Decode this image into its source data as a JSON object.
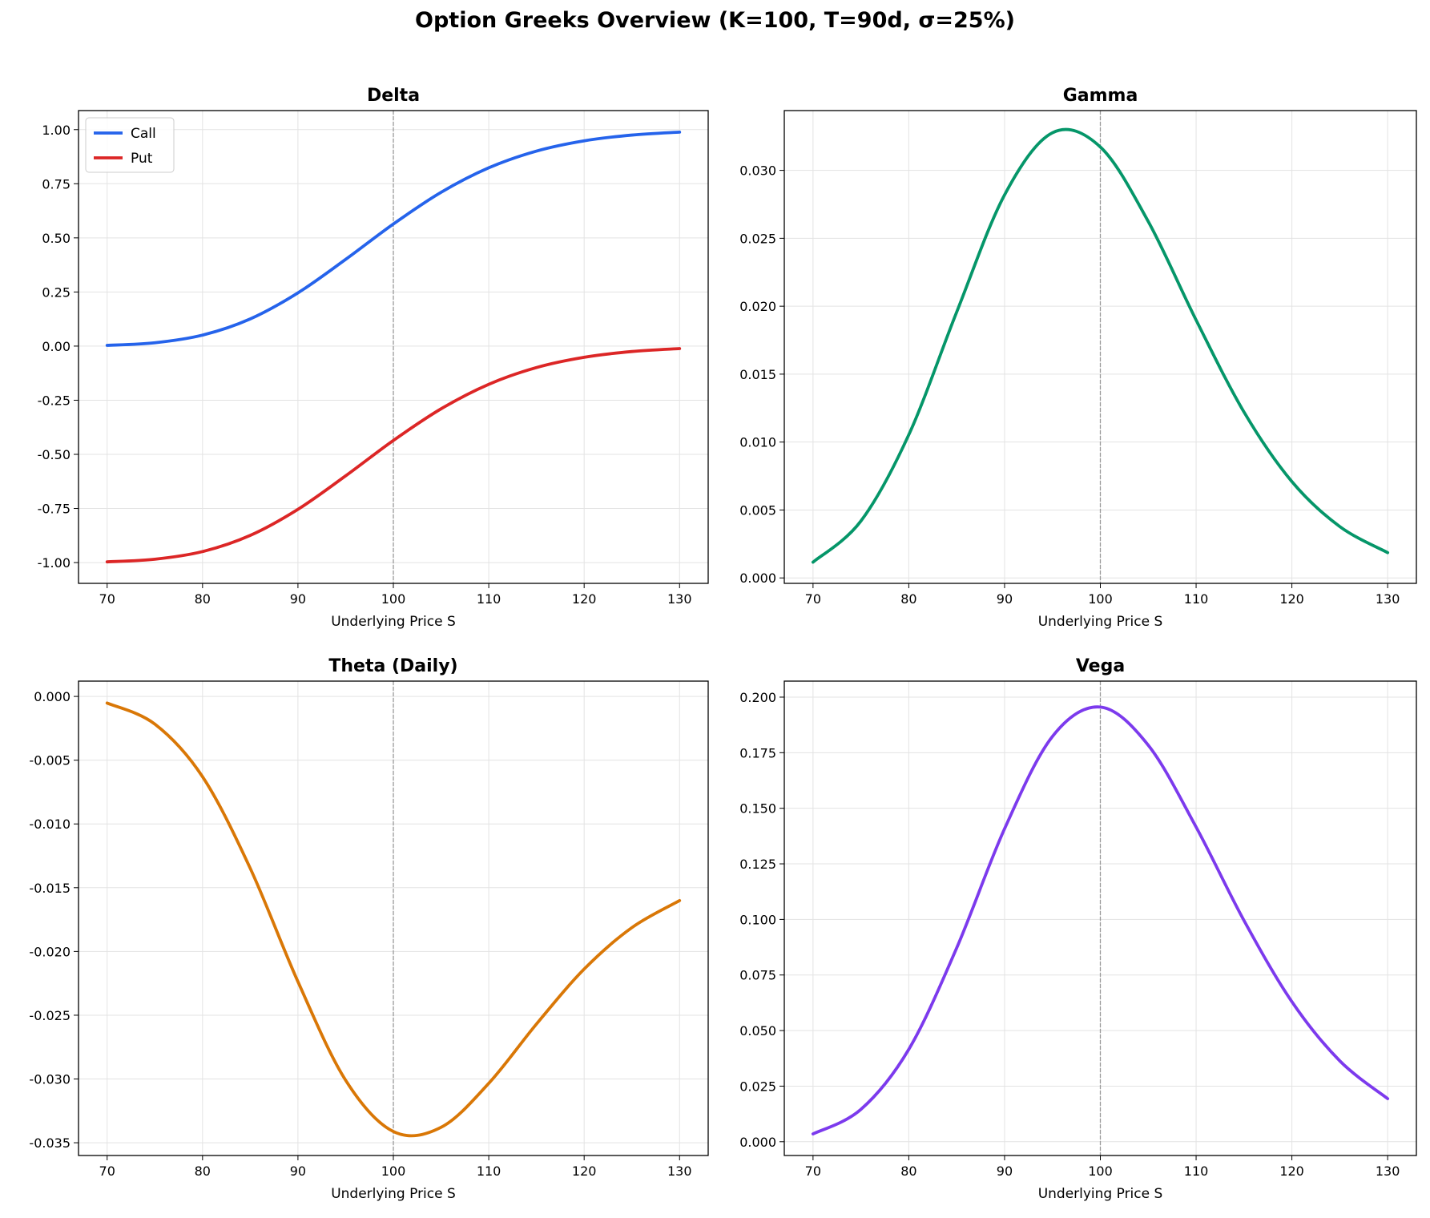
{
  "title": "Option Greeks Overview (K=100, T=90d, σ=25%)",
  "chart_data": [
    {
      "type": "line",
      "title": "Delta",
      "xlabel": "Underlying Price S",
      "ylabel": "",
      "xlim": [
        67,
        133
      ],
      "ylim": [
        -1.096,
        1.088
      ],
      "xticks": [
        70,
        80,
        90,
        100,
        110,
        120,
        130
      ],
      "yticks": [
        -1.0,
        -0.75,
        -0.5,
        -0.25,
        0.0,
        0.25,
        0.5,
        0.75,
        1.0
      ],
      "ytick_labels": [
        "-1.00",
        "-0.75",
        "-0.50",
        "-0.25",
        "0.00",
        "0.25",
        "0.50",
        "0.75",
        "1.00"
      ],
      "grid": true,
      "vline": 100,
      "legend": "top-left",
      "x": [
        70,
        75,
        80,
        85,
        90,
        95,
        100,
        105,
        110,
        115,
        120,
        125,
        130
      ],
      "series": [
        {
          "name": "Call",
          "color": "#2563eb",
          "values": [
            0.0033,
            0.0156,
            0.0509,
            0.1256,
            0.246,
            0.4006,
            0.5641,
            0.7103,
            0.8236,
            0.901,
            0.9484,
            0.9749,
            0.9885
          ]
        },
        {
          "name": "Put",
          "color": "#dc2626",
          "values": [
            -0.9967,
            -0.9844,
            -0.9491,
            -0.8744,
            -0.754,
            -0.5994,
            -0.4359,
            -0.2897,
            -0.1764,
            -0.099,
            -0.0516,
            -0.0251,
            -0.0115
          ]
        }
      ]
    },
    {
      "type": "line",
      "title": "Gamma",
      "xlabel": "Underlying Price S",
      "ylabel": "",
      "xlim": [
        67,
        133
      ],
      "ylim": [
        -0.0004,
        0.0344
      ],
      "xticks": [
        70,
        80,
        90,
        100,
        110,
        120,
        130
      ],
      "yticks": [
        0,
        0.005,
        0.01,
        0.015,
        0.02,
        0.025,
        0.03
      ],
      "ytick_labels": [
        "0.000",
        "0.005",
        "0.010",
        "0.015",
        "0.020",
        "0.025",
        "0.030"
      ],
      "grid": true,
      "vline": 100,
      "x": [
        70,
        75,
        80,
        85,
        90,
        95,
        100,
        105,
        110,
        115,
        120,
        125,
        130
      ],
      "series": [
        {
          "color": "#059669",
          "values": [
            0.00116,
            0.00419,
            0.01054,
            0.01957,
            0.02819,
            0.03277,
            0.03172,
            0.02624,
            0.01898,
            0.01221,
            0.00709,
            0.00378,
            0.00186
          ]
        }
      ]
    },
    {
      "type": "line",
      "title": "Theta (Daily)",
      "xlabel": "Underlying Price S",
      "ylabel": "",
      "xlim": [
        67,
        133
      ],
      "ylim": [
        -0.036,
        0.0012
      ],
      "xticks": [
        70,
        80,
        90,
        100,
        110,
        120,
        130
      ],
      "yticks": [
        -0.035,
        -0.03,
        -0.025,
        -0.02,
        -0.015,
        -0.01,
        -0.005,
        0
      ],
      "ytick_labels": [
        "-0.035",
        "-0.030",
        "-0.025",
        "-0.020",
        "-0.015",
        "-0.010",
        "-0.005",
        "0.000"
      ],
      "grid": true,
      "vline": 100,
      "x": [
        70,
        75,
        80,
        85,
        90,
        95,
        100,
        105,
        110,
        115,
        120,
        125,
        130
      ],
      "series": [
        {
          "color": "#d97706",
          "values": [
            -0.00052,
            -0.00217,
            -0.0063,
            -0.01348,
            -0.02237,
            -0.0301,
            -0.03412,
            -0.03379,
            -0.03034,
            -0.02569,
            -0.02138,
            -0.01813,
            -0.01601
          ]
        }
      ]
    },
    {
      "type": "line",
      "title": "Vega",
      "xlabel": "Underlying Price S",
      "ylabel": "",
      "xlim": [
        67,
        133
      ],
      "ylim": [
        -0.0062,
        0.2072
      ],
      "xticks": [
        70,
        80,
        90,
        100,
        110,
        120,
        130
      ],
      "yticks": [
        0,
        0.025,
        0.05,
        0.075,
        0.1,
        0.125,
        0.15,
        0.175,
        0.2
      ],
      "ytick_labels": [
        "0.000",
        "0.025",
        "0.050",
        "0.075",
        "0.100",
        "0.125",
        "0.150",
        "0.175",
        "0.200"
      ],
      "grid": true,
      "vline": 100,
      "x": [
        70,
        75,
        80,
        85,
        90,
        95,
        100,
        105,
        110,
        115,
        120,
        125,
        130
      ],
      "series": [
        {
          "color": "#7c3aed",
          "values": [
            0.00351,
            0.01454,
            0.04157,
            0.08716,
            0.14078,
            0.18232,
            0.19554,
            0.17838,
            0.14155,
            0.09951,
            0.06298,
            0.03638,
            0.01937
          ]
        }
      ]
    }
  ]
}
